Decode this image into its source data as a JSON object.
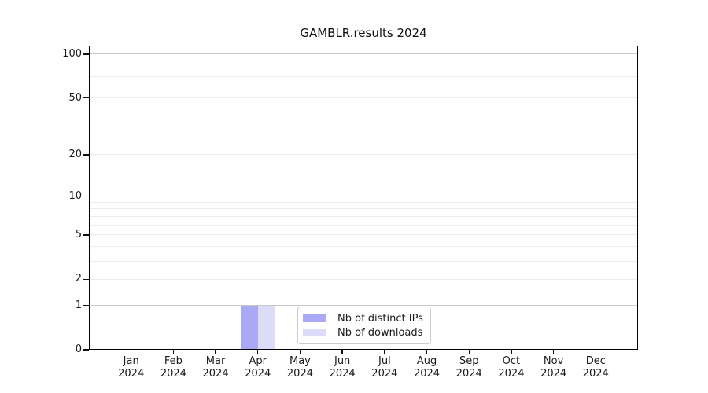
{
  "title": "GAMBLR.results 2024",
  "chart_data": {
    "type": "bar",
    "title": "GAMBLR.results 2024",
    "x_categories": [
      "Jan 2024",
      "Feb 2024",
      "Mar 2024",
      "Apr 2024",
      "May 2024",
      "Jun 2024",
      "Jul 2024",
      "Aug 2024",
      "Sep 2024",
      "Oct 2024",
      "Nov 2024",
      "Dec 2024"
    ],
    "x_tick_months": [
      "Jan",
      "Feb",
      "Mar",
      "Apr",
      "May",
      "Jun",
      "Jul",
      "Aug",
      "Sep",
      "Oct",
      "Nov",
      "Dec"
    ],
    "x_tick_year": "2024",
    "y_scale": "log1p",
    "y_tick_values": [
      0,
      1,
      2,
      5,
      10,
      20,
      50,
      100
    ],
    "y_major_gridlines": [
      1,
      10,
      100
    ],
    "y_minor_gridlines": [
      2,
      3,
      4,
      5,
      6,
      7,
      8,
      9,
      20,
      30,
      40,
      50,
      60,
      70,
      80,
      90
    ],
    "ylim": [
      0,
      116
    ],
    "grid": true,
    "legend_position": "lower center",
    "series": [
      {
        "name": "Nb of distinct IPs",
        "color": "#a9a9f5",
        "values": [
          0,
          0,
          0,
          1,
          0,
          0,
          0,
          0,
          0,
          0,
          0,
          0
        ]
      },
      {
        "name": "Nb of downloads",
        "color": "#dcdcf8",
        "values": [
          0,
          0,
          0,
          1,
          0,
          0,
          0,
          0,
          0,
          0,
          0,
          0
        ]
      }
    ],
    "colors": {
      "text": "#1a1a1a",
      "spine": "#000000",
      "grid_major": "#c9c9c9",
      "grid_minor": "#ededed",
      "background": "#ffffff"
    }
  }
}
